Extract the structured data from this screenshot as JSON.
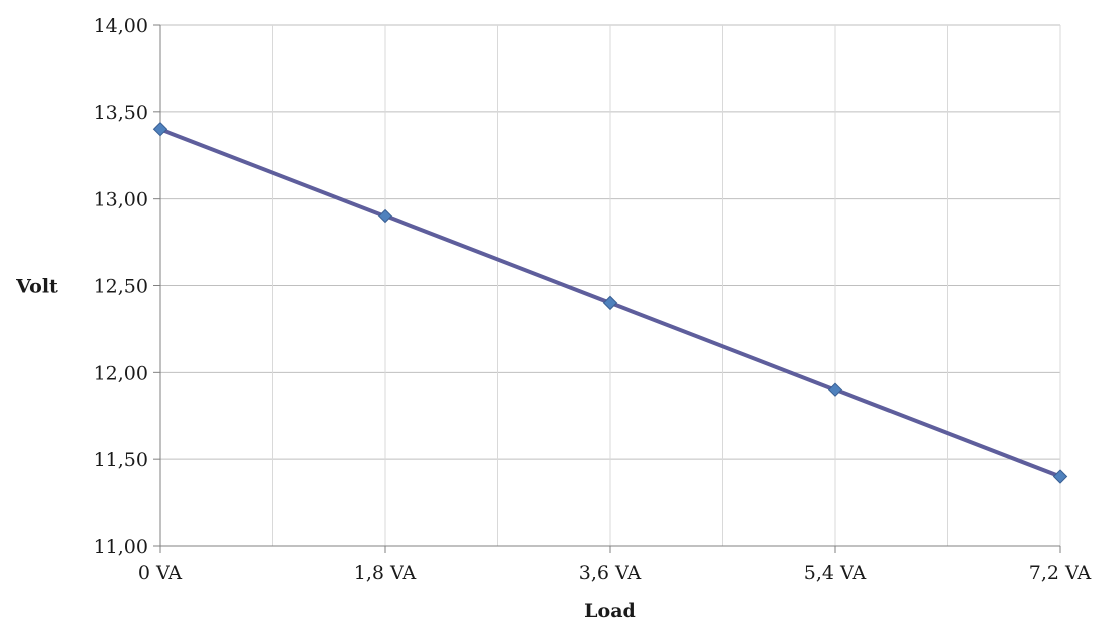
{
  "chart_data": {
    "type": "line",
    "title": "",
    "xlabel": "Load",
    "ylabel": "Volt",
    "x": [
      "0 VA",
      "1,8 VA",
      "3,6 VA",
      "5,4 VA",
      "7,2 VA"
    ],
    "x_values": [
      0,
      1.8,
      3.6,
      5.4,
      7.2
    ],
    "xlim": [
      0,
      7.2
    ],
    "x_minor_gridlines": [
      0.9,
      2.7,
      4.5,
      6.3
    ],
    "y_ticks": [
      "11,00",
      "11,50",
      "12,00",
      "12,50",
      "13,00",
      "13,50",
      "14,00"
    ],
    "y_tick_values": [
      11,
      11.5,
      12,
      12.5,
      13,
      13.5,
      14
    ],
    "ylim": [
      11,
      14
    ],
    "grid": true,
    "legend": "none",
    "series": [
      {
        "values": [
          13.4,
          12.9,
          12.4,
          11.9,
          11.4
        ],
        "line_color": "#5e5e9c",
        "marker": "diamond",
        "marker_color": "#4f81bd"
      }
    ]
  }
}
